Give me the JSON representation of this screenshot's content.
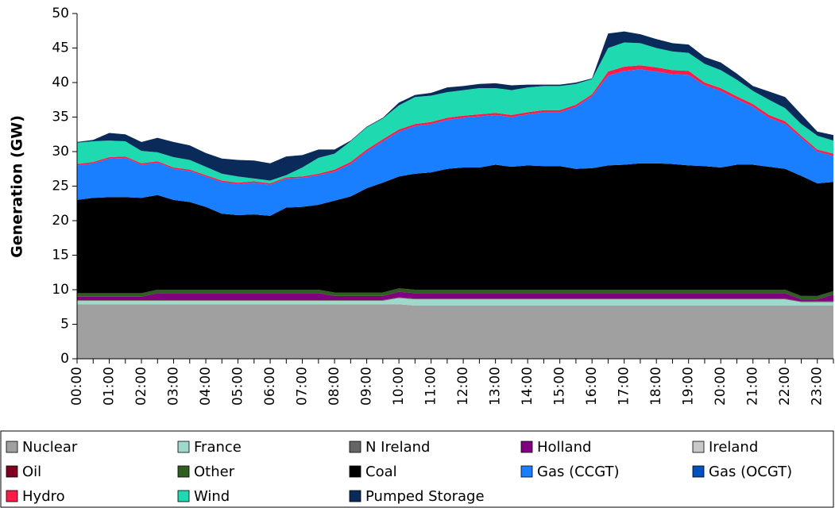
{
  "chart_data": {
    "type": "stacked-area",
    "y_label": "Generation (GW)",
    "categories": [
      "00:00",
      null,
      "01:00",
      null,
      "02:00",
      null,
      "03:00",
      null,
      "04:00",
      null,
      "05:00",
      null,
      "06:00",
      null,
      "07:00",
      null,
      "08:00",
      null,
      "09:00",
      null,
      "10:00",
      null,
      "11:00",
      null,
      "12:00",
      null,
      "13:00",
      null,
      "14:00",
      null,
      "15:00",
      null,
      "16:00",
      null,
      "17:00",
      null,
      "18:00",
      null,
      "19:00",
      null,
      "20:00",
      null,
      "21:00",
      null,
      "22:00",
      null,
      "23:00",
      null
    ],
    "ylim": [
      0,
      50
    ],
    "yticks": [
      0,
      5,
      10,
      15,
      20,
      25,
      30,
      35,
      40,
      45,
      50
    ],
    "series": [
      {
        "name": "Nuclear",
        "color": "#a0a0a0",
        "values": [
          7.9,
          7.9,
          7.9,
          7.9,
          7.9,
          7.9,
          7.9,
          7.9,
          7.9,
          7.9,
          7.9,
          7.9,
          7.9,
          7.9,
          7.9,
          7.9,
          7.9,
          7.9,
          7.9,
          7.9,
          7.9,
          7.7,
          7.7,
          7.7,
          7.7,
          7.7,
          7.7,
          7.7,
          7.7,
          7.7,
          7.7,
          7.7,
          7.7,
          7.7,
          7.7,
          7.7,
          7.7,
          7.7,
          7.7,
          7.7,
          7.7,
          7.7,
          7.7,
          7.7,
          7.7,
          7.7,
          7.7,
          7.7
        ]
      },
      {
        "name": "France",
        "color": "#9fd9cc",
        "values": [
          0.5,
          0.5,
          0.5,
          0.5,
          0.5,
          0.5,
          0.5,
          0.5,
          0.5,
          0.5,
          0.5,
          0.5,
          0.5,
          0.5,
          0.5,
          0.5,
          0.5,
          0.5,
          0.5,
          0.5,
          0.9,
          0.9,
          0.9,
          0.9,
          0.9,
          0.9,
          0.9,
          0.9,
          0.9,
          0.9,
          0.9,
          0.9,
          0.9,
          0.9,
          0.9,
          0.9,
          0.9,
          0.9,
          0.9,
          0.9,
          0.9,
          0.9,
          0.9,
          0.9,
          0.9,
          0.5,
          0.5,
          0.5
        ]
      },
      {
        "name": "N Ireland",
        "color": "#666666",
        "values": [
          0.1,
          0.1,
          0.1,
          0.1,
          0.1,
          0.1,
          0.1,
          0.1,
          0.1,
          0.1,
          0.1,
          0.1,
          0.1,
          0.1,
          0.1,
          0.1,
          0.1,
          0.1,
          0.1,
          0.1,
          0.1,
          0.1,
          0.1,
          0.1,
          0.1,
          0.1,
          0.1,
          0.1,
          0.1,
          0.1,
          0.1,
          0.1,
          0.1,
          0.1,
          0.1,
          0.1,
          0.1,
          0.1,
          0.1,
          0.1,
          0.1,
          0.1,
          0.1,
          0.1,
          0.1,
          0.1,
          0.1,
          0.1
        ]
      },
      {
        "name": "Holland",
        "color": "#800080",
        "values": [
          0.5,
          0.5,
          0.5,
          0.5,
          0.5,
          1.0,
          1.0,
          1.0,
          1.0,
          1.0,
          1.0,
          1.0,
          1.0,
          1.0,
          1.0,
          1.0,
          0.6,
          0.6,
          0.6,
          0.6,
          0.8,
          0.8,
          0.8,
          0.8,
          0.8,
          0.8,
          0.8,
          0.8,
          0.8,
          0.8,
          0.8,
          0.8,
          0.8,
          0.8,
          0.8,
          0.8,
          0.8,
          0.8,
          0.8,
          0.8,
          0.8,
          0.8,
          0.8,
          0.8,
          0.8,
          0.3,
          0.3,
          1.0
        ]
      },
      {
        "name": "Ireland",
        "color": "#c8c8c8",
        "values": [
          0,
          0,
          0,
          0,
          0,
          0,
          0,
          0,
          0,
          0,
          0,
          0,
          0,
          0,
          0,
          0,
          0,
          0,
          0,
          0,
          0,
          0,
          0,
          0,
          0,
          0,
          0,
          0,
          0,
          0,
          0,
          0,
          0,
          0,
          0,
          0,
          0,
          0,
          0,
          0,
          0,
          0,
          0,
          0,
          0,
          0,
          0,
          0
        ]
      },
      {
        "name": "Oil",
        "color": "#800020",
        "values": [
          0,
          0,
          0,
          0,
          0,
          0,
          0,
          0,
          0,
          0,
          0,
          0,
          0,
          0,
          0,
          0,
          0,
          0,
          0,
          0,
          0,
          0,
          0,
          0,
          0,
          0,
          0,
          0,
          0,
          0,
          0,
          0,
          0,
          0,
          0,
          0,
          0,
          0,
          0,
          0,
          0,
          0,
          0,
          0,
          0,
          0,
          0,
          0
        ]
      },
      {
        "name": "Other",
        "color": "#2f5f20",
        "values": [
          0.5,
          0.5,
          0.5,
          0.5,
          0.5,
          0.5,
          0.5,
          0.5,
          0.5,
          0.5,
          0.5,
          0.5,
          0.5,
          0.5,
          0.5,
          0.5,
          0.5,
          0.5,
          0.5,
          0.5,
          0.5,
          0.5,
          0.5,
          0.5,
          0.5,
          0.5,
          0.5,
          0.5,
          0.5,
          0.5,
          0.5,
          0.5,
          0.5,
          0.5,
          0.5,
          0.5,
          0.5,
          0.5,
          0.5,
          0.5,
          0.5,
          0.5,
          0.5,
          0.5,
          0.5,
          0.5,
          0.5,
          0.5
        ]
      },
      {
        "name": "Coal",
        "color": "#000000",
        "values": [
          13.5,
          13.8,
          13.9,
          13.9,
          13.8,
          13.7,
          13.0,
          12.7,
          12.0,
          11.0,
          10.8,
          10.9,
          10.7,
          11.9,
          12.0,
          12.3,
          13.3,
          13.9,
          15.1,
          15.9,
          16.2,
          16.8,
          17.0,
          17.5,
          17.7,
          17.7,
          18.1,
          17.8,
          18.0,
          17.9,
          17.9,
          17.5,
          17.6,
          18.0,
          18.1,
          18.3,
          18.3,
          18.2,
          18.0,
          17.9,
          17.7,
          18.1,
          18.1,
          17.8,
          17.5,
          17.4,
          16.3,
          15.8
        ]
      },
      {
        "name": "Gas (CCGT)",
        "color": "#1a7fff",
        "values": [
          5.0,
          5.0,
          5.6,
          5.7,
          4.8,
          4.7,
          4.5,
          4.5,
          4.4,
          4.6,
          4.5,
          4.6,
          4.5,
          4.2,
          4.2,
          4.3,
          4.2,
          4.7,
          5.3,
          6.0,
          6.5,
          6.9,
          7.0,
          7.1,
          7.2,
          7.4,
          7.2,
          7.2,
          7.4,
          7.8,
          7.8,
          9.0,
          10.4,
          13.0,
          13.6,
          13.6,
          13.3,
          13.0,
          13.1,
          11.7,
          11.1,
          9.5,
          8.4,
          7.1,
          6.5,
          5.5,
          4.6,
          3.8
        ]
      },
      {
        "name": "Gas (OCGT)",
        "color": "#0050c0",
        "values": [
          0,
          0,
          0,
          0,
          0,
          0,
          0,
          0,
          0,
          0,
          0,
          0,
          0,
          0,
          0,
          0,
          0,
          0,
          0,
          0,
          0,
          0,
          0,
          0,
          0,
          0,
          0,
          0,
          0,
          0,
          0,
          0,
          0,
          0,
          0,
          0,
          0,
          0,
          0,
          0,
          0,
          0,
          0,
          0,
          0,
          0,
          0,
          0
        ]
      },
      {
        "name": "Hydro",
        "color": "#ff1a4a",
        "values": [
          0.2,
          0.2,
          0.2,
          0.2,
          0.2,
          0.2,
          0.2,
          0.2,
          0.2,
          0.2,
          0.2,
          0.2,
          0.2,
          0.2,
          0.2,
          0.2,
          0.3,
          0.3,
          0.3,
          0.3,
          0.3,
          0.3,
          0.3,
          0.3,
          0.3,
          0.3,
          0.3,
          0.3,
          0.3,
          0.3,
          0.3,
          0.3,
          0.3,
          0.6,
          0.6,
          0.6,
          0.6,
          0.6,
          0.6,
          0.4,
          0.4,
          0.4,
          0.4,
          0.4,
          0.4,
          0.3,
          0.3,
          0.3
        ]
      },
      {
        "name": "Wind",
        "color": "#1fd9b0",
        "values": [
          3.1,
          3.0,
          2.4,
          2.2,
          1.8,
          1.3,
          1.5,
          1.4,
          1.2,
          1.0,
          0.9,
          0.4,
          0.4,
          0.3,
          1.3,
          2.3,
          2.3,
          3.0,
          3.2,
          3.0,
          3.5,
          3.9,
          3.8,
          3.7,
          3.7,
          3.8,
          3.6,
          3.6,
          3.6,
          3.5,
          3.5,
          3.0,
          2.2,
          3.4,
          3.5,
          3.2,
          2.8,
          2.7,
          2.6,
          2.7,
          2.6,
          2.4,
          1.9,
          2.2,
          1.9,
          1.7,
          2.0,
          1.9
        ]
      },
      {
        "name": "Pumped Storage",
        "color": "#0a2a5a",
        "values": [
          0.1,
          0.2,
          1.1,
          1.0,
          1.3,
          2.1,
          2.2,
          2.1,
          2.0,
          2.2,
          2.4,
          2.6,
          2.5,
          2.7,
          1.8,
          1.2,
          0.6,
          0.1,
          0.1,
          0.1,
          0.4,
          0.3,
          0.4,
          0.7,
          0.6,
          0.6,
          0.7,
          0.7,
          0.4,
          0.2,
          0.2,
          0.2,
          0.1,
          2.1,
          1.6,
          1.3,
          1.3,
          1.2,
          1.2,
          1.0,
          1.1,
          0.9,
          0.7,
          1.2,
          1.6,
          1.4,
          0.6,
          0.8
        ]
      }
    ]
  }
}
